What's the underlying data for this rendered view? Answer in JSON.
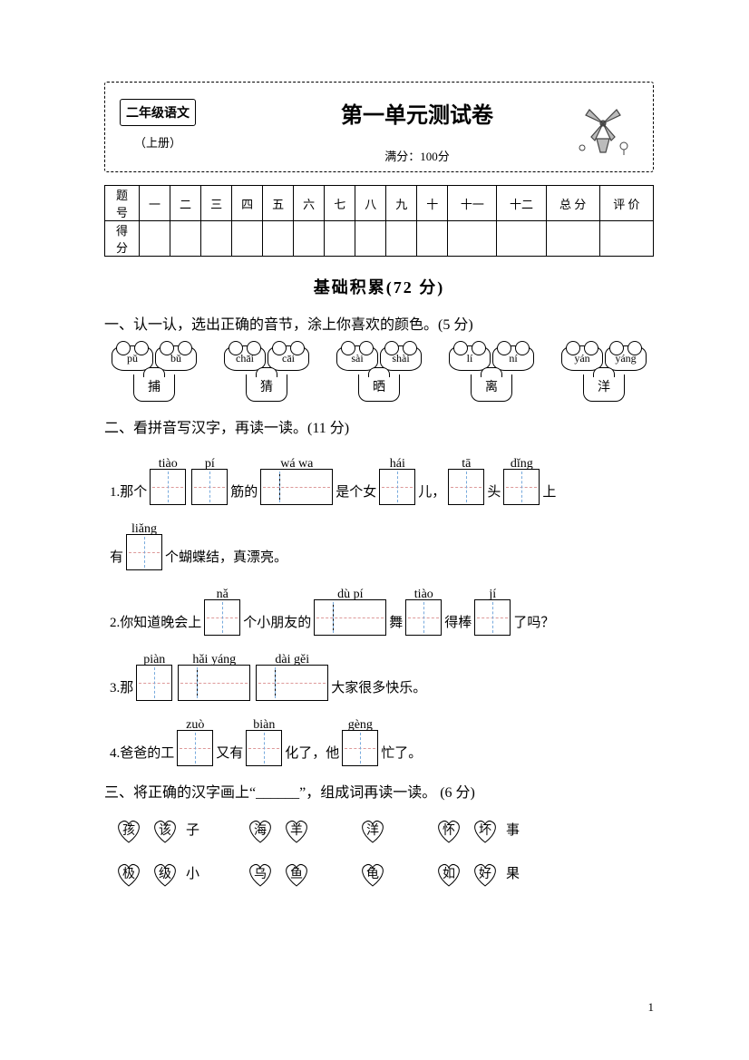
{
  "header": {
    "subject": "二年级语文",
    "volume": "（上册）",
    "title": "第一单元测试卷",
    "full_score": "满分：100分"
  },
  "score_table": {
    "row1_label": "题 号",
    "row2_label": "得 分",
    "cols": [
      "一",
      "二",
      "三",
      "四",
      "五",
      "六",
      "七",
      "八",
      "九",
      "十",
      "十一",
      "十二",
      "总 分",
      "评 价"
    ]
  },
  "section": {
    "title": "基础积累(72 分)"
  },
  "q1": {
    "title": "一、认一认，选出正确的音节，涂上你喜欢的颜色。(5 分)",
    "pairs": [
      {
        "opts": [
          "pǔ",
          "bǔ"
        ],
        "char": "捕"
      },
      {
        "opts": [
          "chāi",
          "cāi"
        ],
        "char": "猜"
      },
      {
        "opts": [
          "sài",
          "shài"
        ],
        "char": "晒"
      },
      {
        "opts": [
          "lí",
          "ní"
        ],
        "char": "离"
      },
      {
        "opts": [
          "yán",
          "yáng"
        ],
        "char": "洋"
      }
    ]
  },
  "q2": {
    "title": "二、看拼音写汉字，再读一读。(11 分)",
    "lines": [
      {
        "n": "1.",
        "parts": [
          {
            "t": "那个"
          },
          {
            "p": "tiào",
            "w": 1
          },
          {
            "p": "pí",
            "w": 1
          },
          {
            "t": "筋的"
          },
          {
            "p": "wá  wa",
            "w": 2
          },
          {
            "t": "是个女"
          },
          {
            "p": "hái",
            "w": 1
          },
          {
            "t": "儿，"
          },
          {
            "p": "tā",
            "w": 1
          },
          {
            "t": "头"
          },
          {
            "p": "dǐng",
            "w": 1
          },
          {
            "t": "上"
          }
        ]
      },
      {
        "n": "",
        "parts": [
          {
            "t": "有"
          },
          {
            "p": "liǎng",
            "w": 1
          },
          {
            "t": "个蝴蝶结，真漂亮。"
          }
        ]
      },
      {
        "n": "2.",
        "parts": [
          {
            "t": "你知道晚会上"
          },
          {
            "p": "nǎ",
            "w": 1
          },
          {
            "t": "个小朋友的"
          },
          {
            "p": "dù  pí",
            "w": 2
          },
          {
            "t": "舞"
          },
          {
            "p": "tiào",
            "w": 1
          },
          {
            "t": "得棒"
          },
          {
            "p": "jí",
            "w": 1
          },
          {
            "t": "了吗？"
          }
        ]
      },
      {
        "n": "3.",
        "parts": [
          {
            "t": "那"
          },
          {
            "p": "piàn",
            "w": 1
          },
          {
            "p": "hǎi yáng",
            "w": 2
          },
          {
            "p": "dài  gěi",
            "w": 2
          },
          {
            "t": "大家很多快乐。"
          }
        ]
      },
      {
        "n": "4.",
        "parts": [
          {
            "t": "爸爸的工"
          },
          {
            "p": "zuò",
            "w": 1
          },
          {
            "t": "又有"
          },
          {
            "p": "biàn",
            "w": 1
          },
          {
            "t": "化了，他"
          },
          {
            "p": "gèng",
            "w": 1
          },
          {
            "t": "忙了。"
          }
        ]
      }
    ]
  },
  "q3": {
    "title": "三、将正确的汉字画上“______”，组成词再读一读。 (6 分)",
    "items": [
      {
        "a": "孩",
        "b": "该",
        "t": "子"
      },
      {
        "a": "海",
        "b": "羊",
        "t": ""
      },
      {
        "a": "洋",
        "b": "",
        "t": ""
      },
      {
        "a": "怀",
        "b": "坏",
        "t": "事"
      },
      {
        "a": "极",
        "b": "级",
        "t": "小"
      },
      {
        "a": "乌",
        "b": "鱼",
        "t": ""
      },
      {
        "a": "龟",
        "b": "",
        "t": ""
      },
      {
        "a": "如",
        "b": "好",
        "t": "果"
      }
    ]
  },
  "page_number": "1"
}
